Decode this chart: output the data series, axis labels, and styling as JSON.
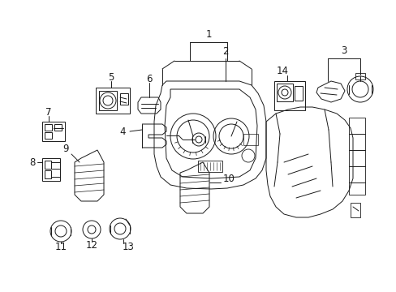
{
  "background_color": "#ffffff",
  "line_color": "#1a1a1a",
  "text_color": "#1a1a1a",
  "fig_width": 4.89,
  "fig_height": 3.6,
  "dpi": 100
}
